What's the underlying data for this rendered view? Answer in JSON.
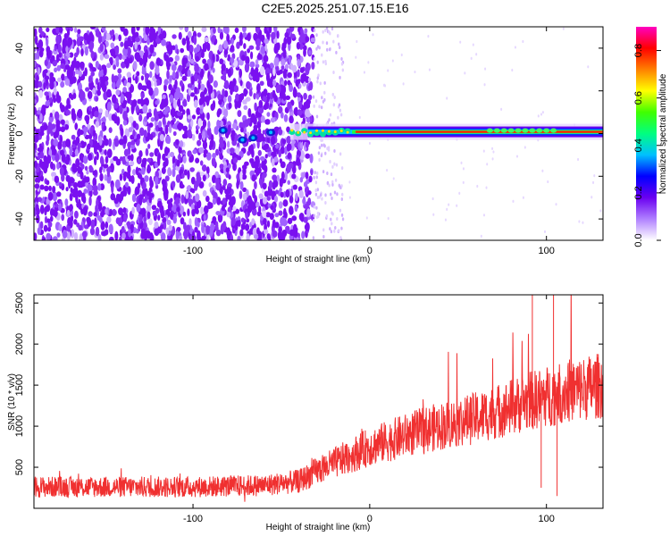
{
  "title": "C2E5.2025.251.07.15.E16",
  "chart_data": [
    {
      "type": "heatmap",
      "xlabel": "Height of straight line (km)",
      "ylabel": "Frequency (Hz)",
      "xlim": [
        -190,
        132
      ],
      "ylim": [
        -50,
        50
      ],
      "xticks": [
        -100,
        0,
        100
      ],
      "yticks": [
        -40,
        -20,
        0,
        20,
        40
      ],
      "colorbar": {
        "label": "Normalized spectral amplitude",
        "range": [
          0,
          0.9
        ],
        "ticks": [
          0.0,
          0.2,
          0.4,
          0.6,
          0.8
        ],
        "colors": [
          "#ffffff",
          "#b080ff",
          "#6a00f0",
          "#0000ff",
          "#00c0ff",
          "#00ff80",
          "#40ff00",
          "#ffff00",
          "#ff8000",
          "#ff0000",
          "#ff00c0"
        ]
      },
      "features": {
        "noise_region_x": [
          -190,
          -32
        ],
        "sparse_region_x": [
          -32,
          -15
        ],
        "signal_line_freq_hz": 0.8,
        "signal_onset_x": -45
      }
    },
    {
      "type": "line",
      "xlabel": "Height of straight line (km)",
      "ylabel": "SNR (10 * v/v)",
      "xlim": [
        -190,
        132
      ],
      "ylim": [
        0,
        2600
      ],
      "xticks": [
        -100,
        0,
        100
      ],
      "yticks": [
        500,
        1000,
        1500,
        2000,
        2500
      ],
      "series": [
        {
          "color": "#f03030",
          "trend_x": [
            -190,
            -100,
            -60,
            -40,
            -30,
            0,
            30,
            60,
            90,
            110,
            132
          ],
          "trend_y": [
            260,
            260,
            280,
            330,
            450,
            750,
            950,
            1100,
            1300,
            1420,
            1500
          ],
          "spike_x": [
            92,
            97,
            104,
            106
          ],
          "spike_y": [
            2600,
            250,
            2600,
            150
          ]
        }
      ]
    }
  ]
}
